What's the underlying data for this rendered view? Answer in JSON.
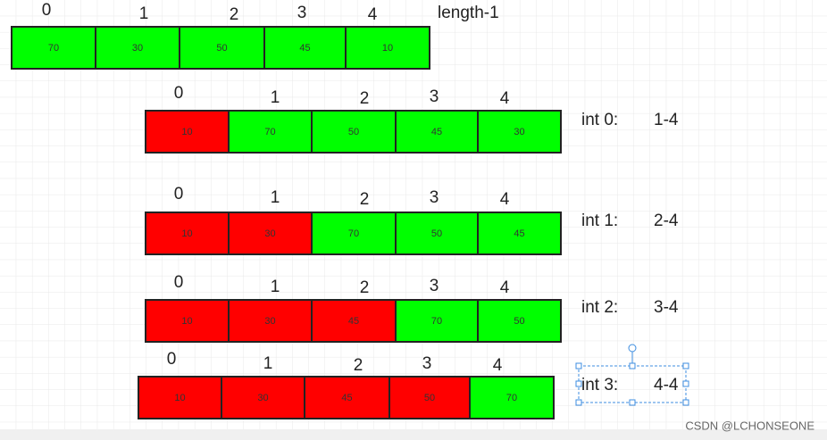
{
  "rows": [
    {
      "indices": [
        0,
        1,
        2,
        3,
        4
      ],
      "cells": [
        {
          "value": 70,
          "color": "#00ff00"
        },
        {
          "value": 30,
          "color": "#00ff00"
        },
        {
          "value": 50,
          "color": "#00ff00"
        },
        {
          "value": 45,
          "color": "#00ff00"
        },
        {
          "value": 10,
          "color": "#00ff00"
        }
      ],
      "note": "length-1"
    },
    {
      "indices": [
        0,
        1,
        2,
        3,
        4
      ],
      "cells": [
        {
          "value": 10,
          "color": "#ff0000"
        },
        {
          "value": 70,
          "color": "#00ff00"
        },
        {
          "value": 50,
          "color": "#00ff00"
        },
        {
          "value": 45,
          "color": "#00ff00"
        },
        {
          "value": 30,
          "color": "#00ff00"
        }
      ],
      "label": "int 0:",
      "range": "1-4"
    },
    {
      "indices": [
        0,
        1,
        2,
        3,
        4
      ],
      "cells": [
        {
          "value": 10,
          "color": "#ff0000"
        },
        {
          "value": 30,
          "color": "#ff0000"
        },
        {
          "value": 70,
          "color": "#00ff00"
        },
        {
          "value": 50,
          "color": "#00ff00"
        },
        {
          "value": 45,
          "color": "#00ff00"
        }
      ],
      "label": "int 1:",
      "range": "2-4"
    },
    {
      "indices": [
        0,
        1,
        2,
        3,
        4
      ],
      "cells": [
        {
          "value": 10,
          "color": "#ff0000"
        },
        {
          "value": 30,
          "color": "#ff0000"
        },
        {
          "value": 45,
          "color": "#ff0000"
        },
        {
          "value": 70,
          "color": "#00ff00"
        },
        {
          "value": 50,
          "color": "#00ff00"
        }
      ],
      "label": "int 2:",
      "range": "3-4"
    },
    {
      "indices": [
        0,
        1,
        2,
        3,
        4
      ],
      "cells": [
        {
          "value": 10,
          "color": "#ff0000"
        },
        {
          "value": 30,
          "color": "#ff0000"
        },
        {
          "value": 45,
          "color": "#ff0000"
        },
        {
          "value": 50,
          "color": "#ff0000"
        },
        {
          "value": 70,
          "color": "#00ff00"
        }
      ],
      "label": "int 3:",
      "range": "4-4"
    }
  ],
  "watermark": "CSDN @LCHONSEONE"
}
